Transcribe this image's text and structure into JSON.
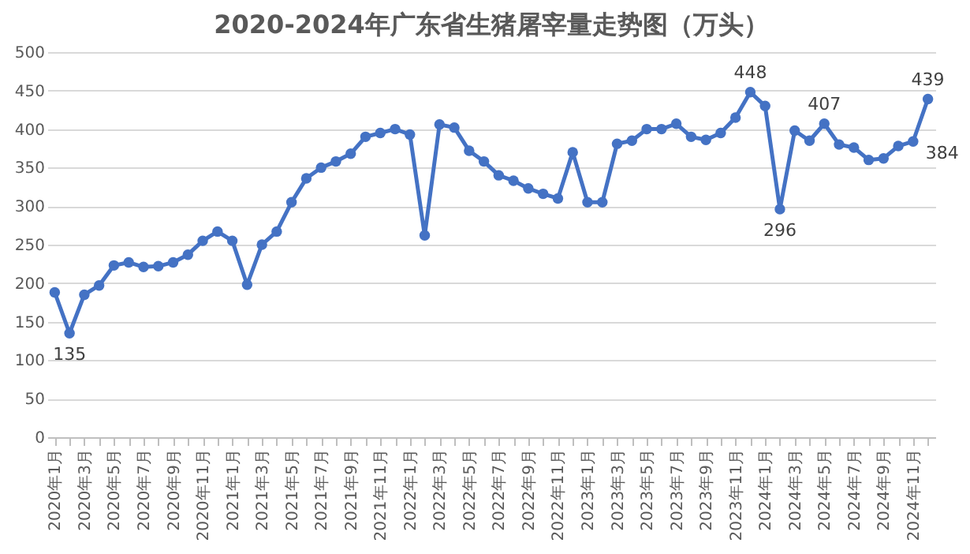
{
  "chart_data": {
    "type": "line",
    "title": "2020-2024年广东省生猪屠宰量走势图（万头）",
    "categories": [
      "2020年1月",
      null,
      "2020年3月",
      null,
      "2020年5月",
      null,
      "2020年7月",
      null,
      "2020年9月",
      null,
      "2020年11月",
      null,
      "2021年1月",
      null,
      "2021年3月",
      null,
      "2021年5月",
      null,
      "2021年7月",
      null,
      "2021年9月",
      null,
      "2021年11月",
      null,
      "2022年1月",
      null,
      "2022年3月",
      null,
      "2022年5月",
      null,
      "2022年7月",
      null,
      "2022年9月",
      null,
      "2022年11月",
      null,
      "2023年1月",
      null,
      "2023年3月",
      null,
      "2023年5月",
      null,
      "2023年7月",
      null,
      "2023年9月",
      null,
      "2023年11月",
      null,
      "2024年1月",
      null,
      "2024年3月",
      null,
      "2024年5月",
      null,
      "2024年7月",
      null,
      "2024年9月",
      null,
      "2024年11月",
      null
    ],
    "series": [
      {
        "color": "#4472c4",
        "values": [
          188,
          135,
          185,
          197,
          223,
          227,
          221,
          222,
          227,
          237,
          255,
          267,
          255,
          198,
          250,
          267,
          305,
          336,
          350,
          358,
          368,
          390,
          395,
          400,
          393,
          262,
          406,
          402,
          372,
          358,
          340,
          333,
          323,
          316,
          310,
          370,
          305,
          305,
          381,
          385,
          400,
          400,
          407,
          390,
          386,
          395,
          415,
          448,
          430,
          296,
          398,
          385,
          407,
          380,
          376,
          360,
          362,
          378,
          384,
          439
        ],
        "value_labels": [
          null,
          "135",
          null,
          null,
          null,
          null,
          null,
          null,
          null,
          null,
          null,
          null,
          null,
          null,
          null,
          null,
          null,
          null,
          null,
          null,
          null,
          null,
          null,
          null,
          null,
          null,
          null,
          null,
          null,
          null,
          null,
          null,
          null,
          null,
          null,
          null,
          null,
          null,
          null,
          null,
          null,
          null,
          null,
          null,
          null,
          null,
          null,
          "448",
          null,
          "296",
          null,
          null,
          "407",
          null,
          null,
          null,
          null,
          null,
          "384",
          "439"
        ]
      }
    ],
    "ylim": [
      0,
      500
    ],
    "yticks": [
      0,
      50,
      100,
      150,
      200,
      250,
      300,
      350,
      400,
      450,
      500
    ],
    "grid": "y",
    "marker": "circle",
    "line_style": "solid"
  }
}
